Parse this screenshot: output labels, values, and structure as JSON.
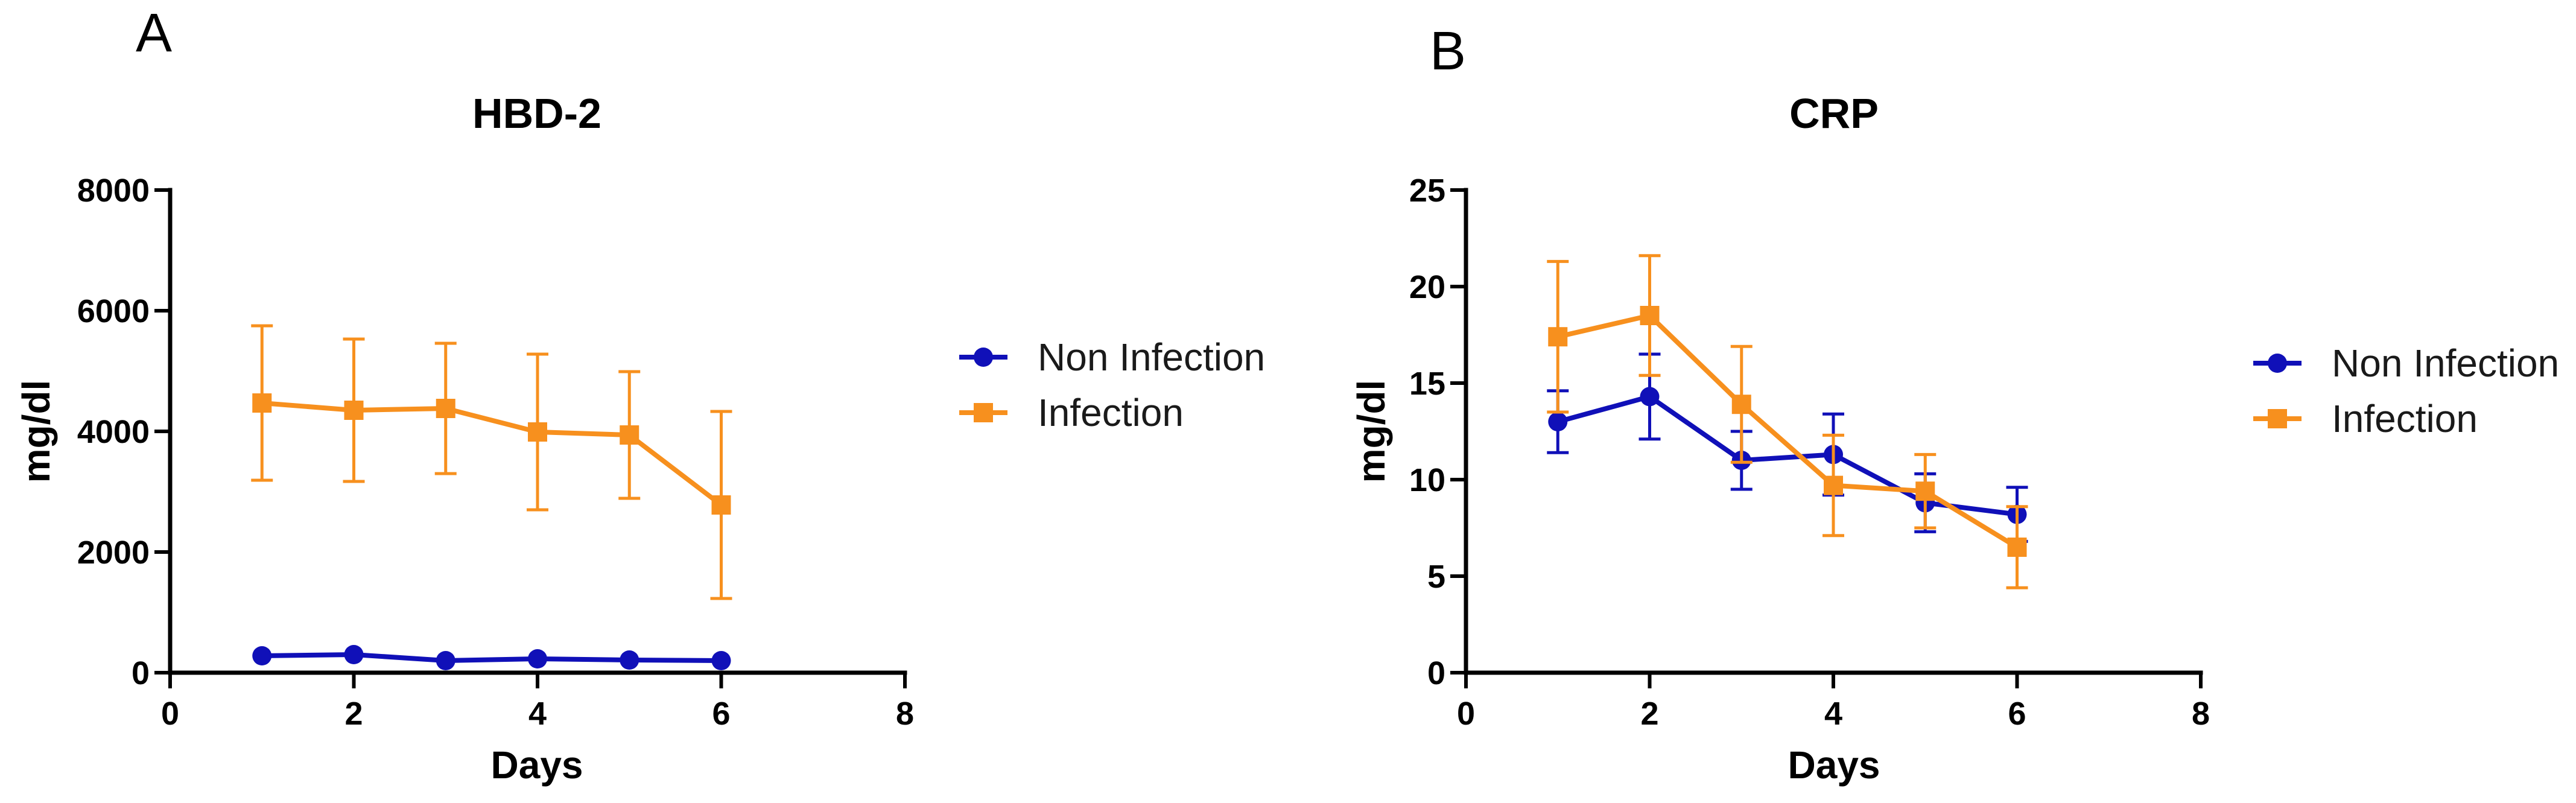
{
  "chart_data": [
    {
      "type": "line",
      "panel_label": "A",
      "title": "HBD-2",
      "xlabel": "Days",
      "ylabel": "mg/dl",
      "xlim": [
        0,
        8
      ],
      "ylim": [
        0,
        8000
      ],
      "xticks": [
        0,
        2,
        4,
        6,
        8
      ],
      "yticks": [
        0,
        2000,
        4000,
        6000,
        8000
      ],
      "legend_position": "right",
      "series": [
        {
          "name": "Non Infection",
          "color": "#1010b8",
          "marker": "circle",
          "x": [
            1,
            2,
            3,
            4,
            5,
            6
          ],
          "values": [
            280,
            300,
            200,
            230,
            210,
            200
          ],
          "error": [
            0,
            0,
            0,
            0,
            0,
            0
          ]
        },
        {
          "name": "Infection",
          "color": "#f7901e",
          "marker": "square",
          "x": [
            1,
            2,
            3,
            4,
            5,
            6
          ],
          "values": [
            4470,
            4350,
            4380,
            3990,
            3940,
            2780
          ],
          "error": [
            1280,
            1180,
            1080,
            1290,
            1050,
            1550
          ]
        }
      ]
    },
    {
      "type": "line",
      "panel_label": "B",
      "title": "CRP",
      "xlabel": "Days",
      "ylabel": "mg/dl",
      "xlim": [
        0,
        8
      ],
      "ylim": [
        0,
        25
      ],
      "xticks": [
        0,
        2,
        4,
        6,
        8
      ],
      "yticks": [
        0,
        5,
        10,
        15,
        20,
        25
      ],
      "legend_position": "right",
      "series": [
        {
          "name": "Non Infection",
          "color": "#1010b8",
          "marker": "circle",
          "x": [
            1,
            2,
            3,
            4,
            5,
            6
          ],
          "values": [
            13.0,
            14.3,
            11.0,
            11.3,
            8.8,
            8.2
          ],
          "error": [
            1.6,
            2.2,
            1.5,
            2.1,
            1.5,
            1.4
          ]
        },
        {
          "name": "Infection",
          "color": "#f7901e",
          "marker": "square",
          "x": [
            1,
            2,
            3,
            4,
            5,
            6
          ],
          "values": [
            17.4,
            18.5,
            13.9,
            9.7,
            9.4,
            6.5
          ],
          "error": [
            3.9,
            3.1,
            3.0,
            2.6,
            1.9,
            2.1
          ]
        }
      ]
    }
  ]
}
